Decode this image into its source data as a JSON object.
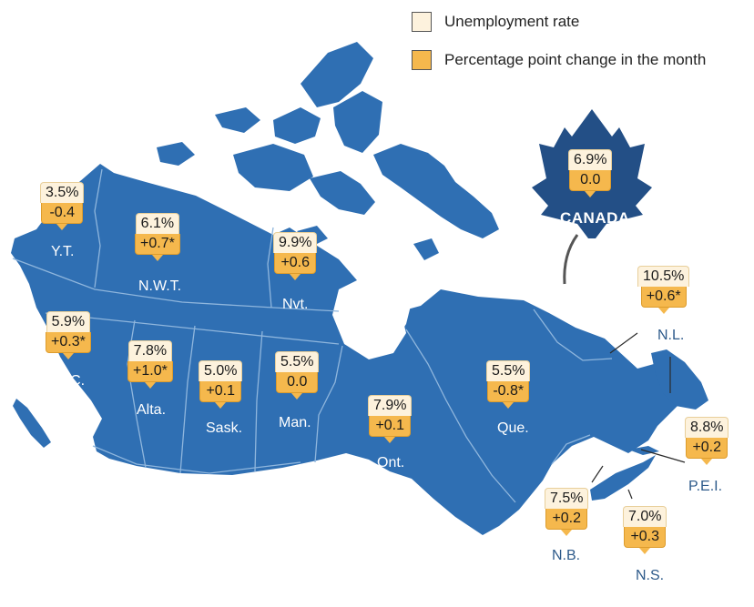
{
  "legend": {
    "items": [
      {
        "label": "Unemployment rate",
        "color": "#fdf2dd"
      },
      {
        "label": "Percentage point change in the month",
        "color": "#f5b84d"
      }
    ]
  },
  "national": {
    "name": "CANADA",
    "rate": "6.9%",
    "change": "0.0"
  },
  "regions": {
    "yt": {
      "label": "Y.T.",
      "rate": "3.5%",
      "change": "-0.4"
    },
    "nwt": {
      "label": "N.W.T.",
      "rate": "6.1%",
      "change": "+0.7*"
    },
    "nvt": {
      "label": "Nvt.",
      "rate": "9.9%",
      "change": "+0.6"
    },
    "bc": {
      "label": "B.C.",
      "rate": "5.9%",
      "change": "+0.3*"
    },
    "alta": {
      "label": "Alta.",
      "rate": "7.8%",
      "change": "+1.0*"
    },
    "sask": {
      "label": "Sask.",
      "rate": "5.0%",
      "change": "+0.1"
    },
    "man": {
      "label": "Man.",
      "rate": "5.5%",
      "change": "0.0"
    },
    "ont": {
      "label": "Ont.",
      "rate": "7.9%",
      "change": "+0.1"
    },
    "que": {
      "label": "Que.",
      "rate": "5.5%",
      "change": "-0.8*"
    },
    "nl": {
      "label": "N.L.",
      "rate": "10.5%",
      "change": "+0.6*"
    },
    "pei": {
      "label": "P.E.I.",
      "rate": "8.8%",
      "change": "+0.2"
    },
    "nb": {
      "label": "N.B.",
      "rate": "7.5%",
      "change": "+0.2"
    },
    "ns": {
      "label": "N.S.",
      "rate": "7.0%",
      "change": "+0.3"
    }
  },
  "colors": {
    "land": "#2f6fb3",
    "border": "#8fb6dd",
    "leaf": "#234f86",
    "rate_box": "#fdf2dd",
    "change_box": "#f5b84d"
  }
}
